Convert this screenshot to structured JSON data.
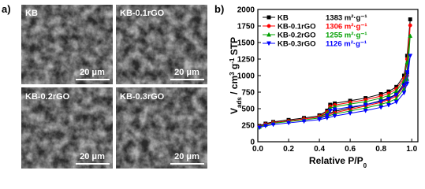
{
  "panel_a": {
    "label": "a)",
    "images": [
      {
        "label": "KB",
        "scale_bar": "20 μm"
      },
      {
        "label": "KB-0.1rGO",
        "scale_bar": "20 μm"
      },
      {
        "label": "KB-0.2rGO",
        "scale_bar": "20 μm"
      },
      {
        "label": "KB-0.3rGO",
        "scale_bar": "20 μm"
      }
    ]
  },
  "chart_data": {
    "type": "line",
    "panel_label": "b)",
    "ylabel_parts": [
      "V",
      "ads",
      " / cm",
      "3",
      " g",
      "-1",
      " STP"
    ],
    "xlabel_parts": [
      "Relative P/P",
      "0"
    ],
    "xlim": [
      0,
      1.04
    ],
    "xticks": [
      {
        "value": 0,
        "label": "0.0"
      },
      0.2,
      0.4,
      0.6,
      0.8,
      {
        "value": 1,
        "label": "1.0"
      }
    ],
    "ylim": [
      0,
      2000
    ],
    "yticks": [
      0,
      250,
      500,
      750,
      1000,
      1250,
      1500,
      1750,
      2000
    ],
    "series": [
      {
        "name": "KB",
        "annotation": "1383 m²·g⁻¹",
        "color": "#000000",
        "marker": "square",
        "x": [
          0.01,
          0.05,
          0.1,
          0.2,
          0.3,
          0.4,
          0.45,
          0.5,
          0.6,
          0.7,
          0.8,
          0.85,
          0.9,
          0.95,
          0.97,
          0.99,
          0.97,
          0.95,
          0.9,
          0.85,
          0.8,
          0.7,
          0.6,
          0.5,
          0.47,
          0.45,
          0.4
        ],
        "values": [
          240,
          275,
          300,
          330,
          360,
          390,
          420,
          460,
          510,
          560,
          620,
          660,
          720,
          880,
          1050,
          1850,
          1300,
          1000,
          830,
          760,
          720,
          660,
          620,
          580,
          560,
          470,
          400
        ]
      },
      {
        "name": "KB-0.1rGO",
        "annotation": "1306 m²·g⁻¹",
        "color": "#ff0000",
        "marker": "circle",
        "x": [
          0.01,
          0.05,
          0.1,
          0.2,
          0.3,
          0.4,
          0.45,
          0.5,
          0.6,
          0.7,
          0.8,
          0.85,
          0.9,
          0.95,
          0.97,
          0.99,
          0.97,
          0.95,
          0.9,
          0.85,
          0.8,
          0.7,
          0.6,
          0.5,
          0.47,
          0.45,
          0.4
        ],
        "values": [
          230,
          265,
          290,
          315,
          345,
          375,
          400,
          440,
          490,
          540,
          595,
          635,
          690,
          840,
          1000,
          1760,
          1250,
          960,
          800,
          730,
          690,
          635,
          595,
          555,
          535,
          450,
          385
        ]
      },
      {
        "name": "KB-0.2rGO",
        "annotation": "1255 m²·g⁻¹",
        "color": "#00a000",
        "marker": "triangle-up",
        "x": [
          0.01,
          0.05,
          0.1,
          0.2,
          0.3,
          0.4,
          0.45,
          0.5,
          0.6,
          0.7,
          0.8,
          0.85,
          0.9,
          0.95,
          0.97,
          0.99,
          0.97,
          0.95,
          0.9,
          0.85,
          0.8,
          0.7,
          0.6,
          0.5,
          0.47,
          0.45,
          0.4
        ],
        "values": [
          225,
          255,
          280,
          305,
          330,
          360,
          385,
          420,
          465,
          510,
          565,
          600,
          650,
          800,
          950,
          1600,
          1200,
          920,
          770,
          700,
          660,
          605,
          570,
          530,
          510,
          430,
          370
        ]
      },
      {
        "name": "KB-0.3rGO",
        "annotation": "1126 m²·g⁻¹",
        "color": "#0000ff",
        "marker": "triangle-down",
        "x": [
          0.01,
          0.05,
          0.1,
          0.2,
          0.3,
          0.4,
          0.45,
          0.5,
          0.6,
          0.7,
          0.8,
          0.85,
          0.9,
          0.95,
          0.97,
          0.99,
          0.97,
          0.95,
          0.9,
          0.85,
          0.8,
          0.7,
          0.6,
          0.5,
          0.47,
          0.45,
          0.4
        ],
        "values": [
          215,
          240,
          260,
          285,
          310,
          335,
          360,
          390,
          430,
          470,
          520,
          555,
          600,
          740,
          880,
          1300,
          1050,
          850,
          710,
          650,
          610,
          560,
          525,
          490,
          470,
          400,
          345
        ]
      }
    ]
  }
}
